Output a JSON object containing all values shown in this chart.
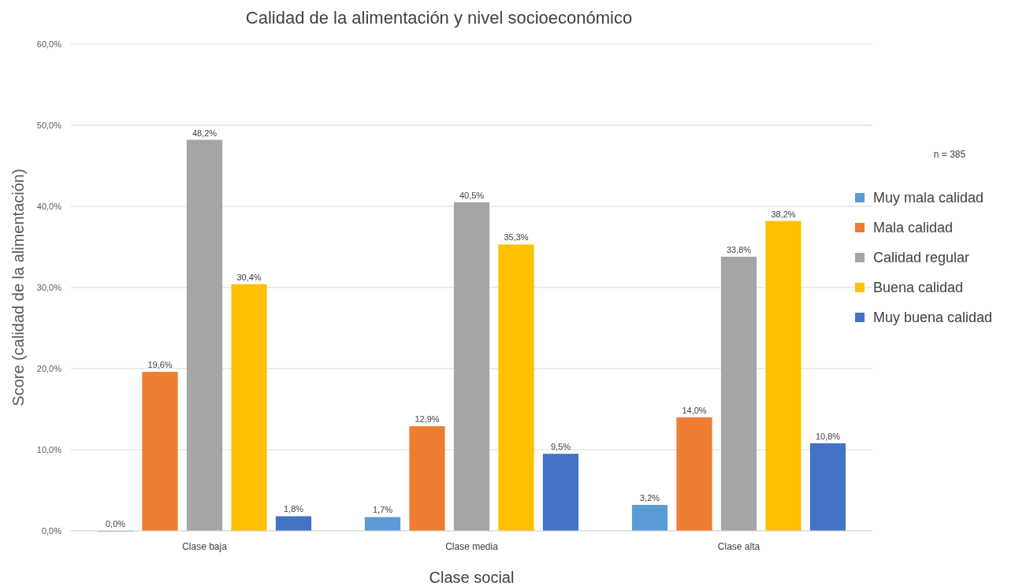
{
  "chart_data": {
    "type": "bar",
    "title": "Calidad de la alimentación y nivel socioeconómico",
    "xlabel": "Clase social",
    "ylabel": "Score (calidad de la alimentación)",
    "categories": [
      "Clase baja",
      "Clase media",
      "Clase alta"
    ],
    "series": [
      {
        "name": "Muy mala calidad",
        "color": "#5b9bd5",
        "values": [
          0.0,
          1.7,
          3.2
        ],
        "value_labels": [
          "0,0%",
          "1,7%",
          "3,2%"
        ]
      },
      {
        "name": "Mala calidad",
        "color": "#ed7d31",
        "values": [
          19.6,
          12.9,
          14.0
        ],
        "value_labels": [
          "19,6%",
          "12,9%",
          "14,0%"
        ]
      },
      {
        "name": "Calidad regular",
        "color": "#a5a5a5",
        "values": [
          48.2,
          40.5,
          33.8
        ],
        "value_labels": [
          "48,2%",
          "40,5%",
          "33,8%"
        ]
      },
      {
        "name": "Buena calidad",
        "color": "#ffc000",
        "values": [
          30.4,
          35.3,
          38.2
        ],
        "value_labels": [
          "30,4%",
          "35,3%",
          "38,2%"
        ]
      },
      {
        "name": "Muy buena calidad",
        "color": "#4472c4",
        "values": [
          1.8,
          9.5,
          10.8
        ],
        "value_labels": [
          "1,8%",
          "9,5%",
          "10,8%"
        ]
      }
    ],
    "ylim": [
      0,
      60
    ],
    "yticks": [
      {
        "value": 0,
        "label": "0,0%"
      },
      {
        "value": 10,
        "label": "10,0%"
      },
      {
        "value": 20,
        "label": "20,0%"
      },
      {
        "value": 30,
        "label": "30,0%"
      },
      {
        "value": 40,
        "label": "40,0%"
      },
      {
        "value": 50,
        "label": "50,0%"
      },
      {
        "value": 60,
        "label": "60,0%"
      }
    ],
    "grid": "y",
    "legend": "right",
    "annotations": [
      "n = 385"
    ]
  }
}
